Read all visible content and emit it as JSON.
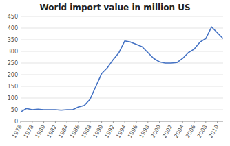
{
  "chart_data": {
    "type": "line",
    "title": "World import value in million US",
    "x": [
      1976,
      1977,
      1978,
      1979,
      1980,
      1981,
      1982,
      1983,
      1984,
      1985,
      1986,
      1987,
      1988,
      1989,
      1990,
      1991,
      1992,
      1993,
      1994,
      1995,
      1996,
      1997,
      1998,
      1999,
      2000,
      2001,
      2002,
      2003,
      2004,
      2005,
      2006,
      2007,
      2008,
      2009,
      2010,
      2011
    ],
    "values": [
      40,
      55,
      50,
      52,
      50,
      50,
      50,
      48,
      50,
      50,
      62,
      68,
      95,
      150,
      205,
      230,
      265,
      295,
      345,
      340,
      330,
      320,
      295,
      270,
      255,
      250,
      250,
      252,
      270,
      295,
      310,
      340,
      355,
      405,
      380,
      355
    ],
    "color": "#4472c4",
    "xlim": [
      1976,
      2011
    ],
    "xticks": [
      1976,
      1978,
      1980,
      1982,
      1984,
      1986,
      1988,
      1990,
      1992,
      1994,
      1996,
      1998,
      2000,
      2002,
      2004,
      2006,
      2008,
      2010
    ],
    "ylim": [
      0,
      450
    ],
    "yticks": [
      0,
      50,
      100,
      150,
      200,
      250,
      300,
      350,
      400,
      450
    ],
    "grid": true
  }
}
